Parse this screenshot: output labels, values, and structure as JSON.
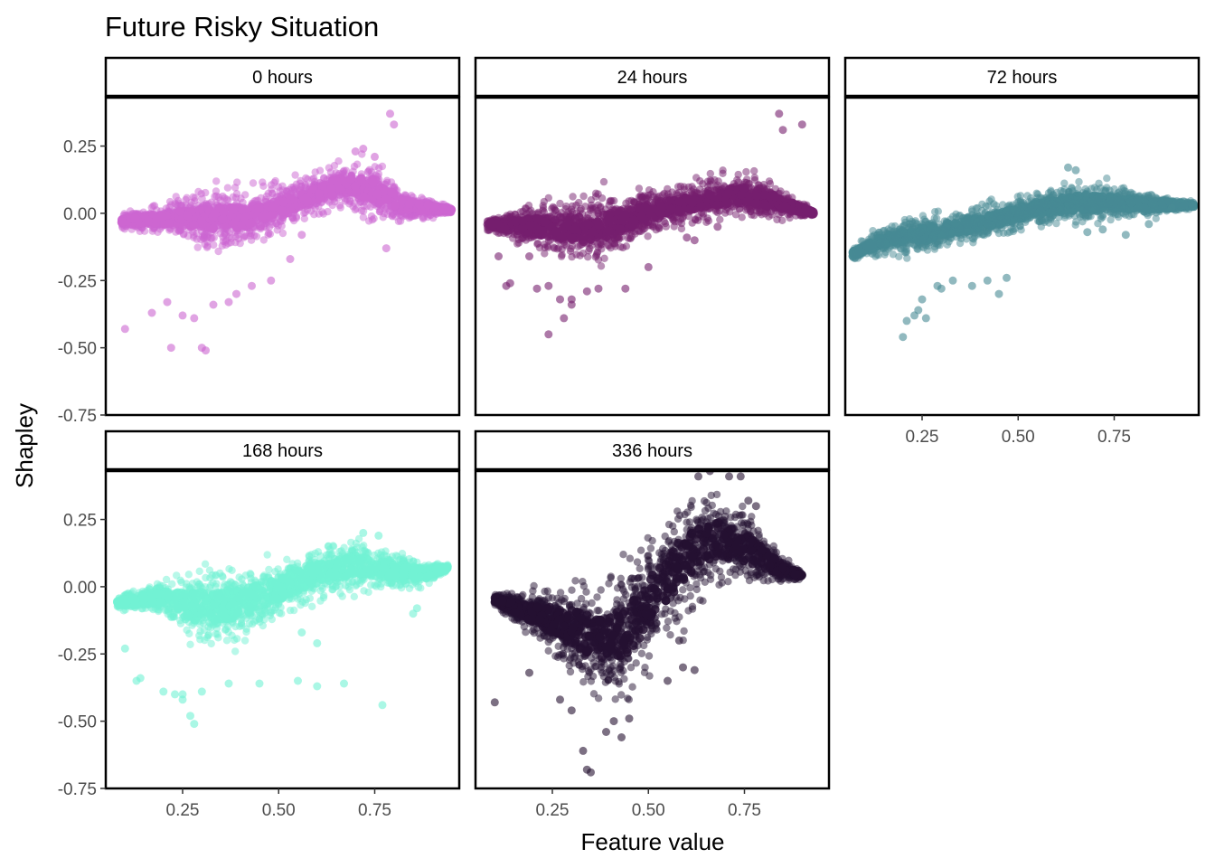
{
  "chart_data": {
    "type": "scatter",
    "title": "Future Risky Situation",
    "xlabel": "Feature value",
    "ylabel": "Shapley",
    "xlim": [
      0.05,
      0.97
    ],
    "ylim": [
      -0.75,
      0.43
    ],
    "x_ticks": [
      0.25,
      0.5,
      0.75
    ],
    "x_tick_labels": [
      "0.25",
      "0.50",
      "0.75"
    ],
    "y_ticks": [
      0.25,
      0.0,
      -0.25,
      -0.5,
      -0.75
    ],
    "y_tick_labels": [
      "0.25",
      "0.00",
      "-0.25",
      "-0.50",
      "-0.75"
    ],
    "grid": false,
    "legend": "none",
    "panels": [
      {
        "name": "0 hours",
        "color": "#cc66d1",
        "trend": [
          [
            0.09,
            -0.03
          ],
          [
            0.2,
            -0.02
          ],
          [
            0.35,
            -0.02
          ],
          [
            0.45,
            -0.01
          ],
          [
            0.55,
            0.05
          ],
          [
            0.65,
            0.1
          ],
          [
            0.75,
            0.09
          ],
          [
            0.82,
            0.03
          ],
          [
            0.95,
            0.01
          ]
        ],
        "band": [
          [
            0.09,
            0.02
          ],
          [
            0.2,
            0.05
          ],
          [
            0.35,
            0.09
          ],
          [
            0.45,
            0.09
          ],
          [
            0.55,
            0.07
          ],
          [
            0.65,
            0.07
          ],
          [
            0.75,
            0.09
          ],
          [
            0.82,
            0.05
          ],
          [
            0.95,
            0.01
          ]
        ],
        "extras": [
          [
            0.1,
            -0.43
          ],
          [
            0.22,
            -0.5
          ],
          [
            0.3,
            -0.5
          ],
          [
            0.31,
            -0.51
          ],
          [
            0.25,
            -0.38
          ],
          [
            0.28,
            -0.39
          ],
          [
            0.21,
            -0.33
          ],
          [
            0.17,
            -0.37
          ],
          [
            0.33,
            -0.34
          ],
          [
            0.37,
            -0.33
          ],
          [
            0.43,
            -0.27
          ],
          [
            0.48,
            -0.25
          ],
          [
            0.39,
            -0.3
          ],
          [
            0.79,
            0.37
          ],
          [
            0.8,
            0.33
          ],
          [
            0.72,
            0.24
          ],
          [
            0.7,
            0.23
          ],
          [
            0.75,
            0.21
          ],
          [
            0.78,
            -0.13
          ],
          [
            0.53,
            -0.17
          ],
          [
            0.56,
            -0.08
          ]
        ]
      },
      {
        "name": "24 hours",
        "color": "#761f6e",
        "trend": [
          [
            0.08,
            -0.04
          ],
          [
            0.2,
            -0.05
          ],
          [
            0.35,
            -0.06
          ],
          [
            0.45,
            -0.02
          ],
          [
            0.55,
            0.02
          ],
          [
            0.65,
            0.05
          ],
          [
            0.75,
            0.07
          ],
          [
            0.84,
            0.04
          ],
          [
            0.93,
            0.0
          ]
        ],
        "band": [
          [
            0.08,
            0.02
          ],
          [
            0.2,
            0.07
          ],
          [
            0.35,
            0.11
          ],
          [
            0.45,
            0.08
          ],
          [
            0.55,
            0.06
          ],
          [
            0.65,
            0.06
          ],
          [
            0.75,
            0.07
          ],
          [
            0.84,
            0.05
          ],
          [
            0.93,
            0.01
          ]
        ],
        "extras": [
          [
            0.14,
            -0.26
          ],
          [
            0.13,
            -0.27
          ],
          [
            0.11,
            -0.16
          ],
          [
            0.19,
            -0.16
          ],
          [
            0.21,
            -0.28
          ],
          [
            0.24,
            -0.27
          ],
          [
            0.27,
            -0.32
          ],
          [
            0.3,
            -0.32
          ],
          [
            0.34,
            -0.29
          ],
          [
            0.37,
            -0.28
          ],
          [
            0.28,
            -0.39
          ],
          [
            0.3,
            -0.34
          ],
          [
            0.24,
            -0.45
          ],
          [
            0.44,
            -0.28
          ],
          [
            0.5,
            -0.2
          ],
          [
            0.6,
            -0.09
          ],
          [
            0.62,
            -0.1
          ],
          [
            0.68,
            -0.05
          ],
          [
            0.84,
            0.37
          ],
          [
            0.85,
            0.31
          ],
          [
            0.9,
            0.33
          ]
        ]
      },
      {
        "name": "72 hours",
        "color": "#478a94",
        "trend": [
          [
            0.07,
            -0.15
          ],
          [
            0.15,
            -0.1
          ],
          [
            0.25,
            -0.08
          ],
          [
            0.35,
            -0.05
          ],
          [
            0.45,
            -0.02
          ],
          [
            0.55,
            0.02
          ],
          [
            0.65,
            0.04
          ],
          [
            0.75,
            0.04
          ],
          [
            0.85,
            0.03
          ],
          [
            0.96,
            0.03
          ]
        ],
        "band": [
          [
            0.07,
            0.02
          ],
          [
            0.15,
            0.04
          ],
          [
            0.25,
            0.06
          ],
          [
            0.35,
            0.05
          ],
          [
            0.45,
            0.05
          ],
          [
            0.55,
            0.05
          ],
          [
            0.65,
            0.07
          ],
          [
            0.75,
            0.05
          ],
          [
            0.85,
            0.04
          ],
          [
            0.96,
            0.01
          ]
        ],
        "extras": [
          [
            0.2,
            -0.46
          ],
          [
            0.21,
            -0.4
          ],
          [
            0.23,
            -0.38
          ],
          [
            0.25,
            -0.32
          ],
          [
            0.26,
            -0.39
          ],
          [
            0.24,
            -0.36
          ],
          [
            0.29,
            -0.27
          ],
          [
            0.3,
            -0.28
          ],
          [
            0.33,
            -0.25
          ],
          [
            0.38,
            -0.27
          ],
          [
            0.45,
            -0.3
          ],
          [
            0.47,
            -0.24
          ],
          [
            0.42,
            -0.25
          ],
          [
            0.63,
            0.17
          ],
          [
            0.65,
            0.16
          ],
          [
            0.68,
            -0.07
          ],
          [
            0.72,
            -0.06
          ],
          [
            0.78,
            -0.08
          ],
          [
            0.84,
            -0.04
          ],
          [
            0.9,
            0.02
          ],
          [
            0.12,
            -0.15
          ]
        ]
      },
      {
        "name": "168 hours",
        "color": "#72f2d3",
        "trend": [
          [
            0.08,
            -0.06
          ],
          [
            0.2,
            -0.04
          ],
          [
            0.3,
            -0.08
          ],
          [
            0.4,
            -0.06
          ],
          [
            0.5,
            -0.01
          ],
          [
            0.6,
            0.05
          ],
          [
            0.7,
            0.08
          ],
          [
            0.8,
            0.06
          ],
          [
            0.88,
            0.05
          ],
          [
            0.94,
            0.07
          ]
        ],
        "band": [
          [
            0.08,
            0.02
          ],
          [
            0.2,
            0.05
          ],
          [
            0.3,
            0.13
          ],
          [
            0.4,
            0.11
          ],
          [
            0.5,
            0.09
          ],
          [
            0.6,
            0.08
          ],
          [
            0.7,
            0.08
          ],
          [
            0.8,
            0.06
          ],
          [
            0.88,
            0.04
          ],
          [
            0.94,
            0.01
          ]
        ],
        "extras": [
          [
            0.1,
            -0.23
          ],
          [
            0.13,
            -0.35
          ],
          [
            0.14,
            -0.34
          ],
          [
            0.2,
            -0.39
          ],
          [
            0.23,
            -0.4
          ],
          [
            0.25,
            -0.4
          ],
          [
            0.25,
            -0.42
          ],
          [
            0.27,
            -0.48
          ],
          [
            0.28,
            -0.51
          ],
          [
            0.3,
            -0.39
          ],
          [
            0.37,
            -0.36
          ],
          [
            0.45,
            -0.36
          ],
          [
            0.55,
            -0.35
          ],
          [
            0.6,
            -0.37
          ],
          [
            0.67,
            -0.36
          ],
          [
            0.77,
            -0.44
          ],
          [
            0.85,
            -0.1
          ],
          [
            0.86,
            -0.08
          ],
          [
            0.72,
            0.2
          ],
          [
            0.76,
            0.19
          ],
          [
            0.56,
            -0.17
          ],
          [
            0.6,
            -0.21
          ]
        ]
      },
      {
        "name": "336 hours",
        "color": "#241131",
        "trend": [
          [
            0.1,
            -0.05
          ],
          [
            0.2,
            -0.1
          ],
          [
            0.3,
            -0.15
          ],
          [
            0.38,
            -0.2
          ],
          [
            0.45,
            -0.16
          ],
          [
            0.52,
            -0.02
          ],
          [
            0.6,
            0.12
          ],
          [
            0.68,
            0.18
          ],
          [
            0.76,
            0.14
          ],
          [
            0.84,
            0.07
          ],
          [
            0.9,
            0.04
          ]
        ],
        "band": [
          [
            0.1,
            0.02
          ],
          [
            0.2,
            0.07
          ],
          [
            0.3,
            0.14
          ],
          [
            0.38,
            0.18
          ],
          [
            0.45,
            0.2
          ],
          [
            0.52,
            0.19
          ],
          [
            0.6,
            0.18
          ],
          [
            0.68,
            0.14
          ],
          [
            0.76,
            0.11
          ],
          [
            0.84,
            0.05
          ],
          [
            0.9,
            0.01
          ]
        ],
        "extras": [
          [
            0.34,
            -0.68
          ],
          [
            0.35,
            -0.69
          ],
          [
            0.33,
            -0.61
          ],
          [
            0.39,
            -0.54
          ],
          [
            0.41,
            -0.5
          ],
          [
            0.43,
            -0.56
          ],
          [
            0.45,
            -0.49
          ],
          [
            0.3,
            -0.46
          ],
          [
            0.27,
            -0.42
          ],
          [
            0.1,
            -0.43
          ],
          [
            0.19,
            -0.32
          ],
          [
            0.66,
            0.43
          ],
          [
            0.63,
            0.41
          ],
          [
            0.71,
            0.41
          ],
          [
            0.74,
            0.41
          ],
          [
            0.76,
            0.32
          ],
          [
            0.78,
            0.3
          ],
          [
            0.58,
            -0.2
          ],
          [
            0.59,
            -0.3
          ],
          [
            0.62,
            -0.31
          ],
          [
            0.55,
            -0.35
          ]
        ]
      }
    ]
  }
}
